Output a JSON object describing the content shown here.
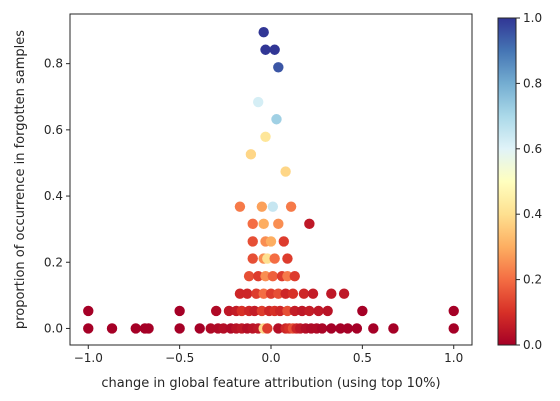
{
  "chart_data": {
    "type": "scatter",
    "title": "",
    "xlabel": "change in global feature attribution (using top 10%)",
    "ylabel": "proportion of occurrence in forgotten samples",
    "xlim": [
      -1.1,
      1.1
    ],
    "ylim": [
      -0.05,
      0.95
    ],
    "xticks": [
      -1.0,
      -0.5,
      0.0,
      0.5,
      1.0
    ],
    "xtick_labels": [
      "−1.0",
      "−0.5",
      "0.0",
      "0.5",
      "1.0"
    ],
    "yticks": [
      0.0,
      0.2,
      0.4,
      0.6,
      0.8
    ],
    "ytick_labels": [
      "0.0",
      "0.2",
      "0.4",
      "0.6",
      "0.8"
    ],
    "grid": false,
    "colorbar": {
      "colormap": "RdYlBu",
      "range": [
        0.0,
        1.0
      ],
      "ticks": [
        0.0,
        0.2,
        0.4,
        0.6,
        0.8,
        1.0
      ],
      "tick_labels": [
        "0.0",
        "0.2",
        "0.4",
        "0.6",
        "0.8",
        "1.0"
      ],
      "colors": [
        "#a50026",
        "#d73027",
        "#f46d43",
        "#fdae61",
        "#fee090",
        "#ffffbf",
        "#e0f3f8",
        "#abd9e9",
        "#74add1",
        "#4575b4",
        "#313695"
      ]
    },
    "points": [
      {
        "x": -0.04,
        "y": 0.895,
        "c": 1.0
      },
      {
        "x": -0.03,
        "y": 0.842,
        "c": 1.0
      },
      {
        "x": 0.02,
        "y": 0.842,
        "c": 1.0
      },
      {
        "x": 0.04,
        "y": 0.789,
        "c": 0.95
      },
      {
        "x": -0.07,
        "y": 0.684,
        "c": 0.62
      },
      {
        "x": 0.03,
        "y": 0.632,
        "c": 0.72
      },
      {
        "x": -0.03,
        "y": 0.579,
        "c": 0.42
      },
      {
        "x": -0.11,
        "y": 0.526,
        "c": 0.38
      },
      {
        "x": 0.08,
        "y": 0.474,
        "c": 0.38
      },
      {
        "x": -0.17,
        "y": 0.368,
        "c": 0.22
      },
      {
        "x": -0.05,
        "y": 0.368,
        "c": 0.28
      },
      {
        "x": 0.01,
        "y": 0.368,
        "c": 0.65
      },
      {
        "x": 0.11,
        "y": 0.368,
        "c": 0.22
      },
      {
        "x": 0.21,
        "y": 0.316,
        "c": 0.05
      },
      {
        "x": -0.1,
        "y": 0.316,
        "c": 0.2
      },
      {
        "x": -0.04,
        "y": 0.316,
        "c": 0.3
      },
      {
        "x": 0.04,
        "y": 0.316,
        "c": 0.25
      },
      {
        "x": -0.1,
        "y": 0.263,
        "c": 0.15
      },
      {
        "x": -0.03,
        "y": 0.263,
        "c": 0.25
      },
      {
        "x": 0.0,
        "y": 0.263,
        "c": 0.3
      },
      {
        "x": 0.07,
        "y": 0.263,
        "c": 0.12
      },
      {
        "x": -0.1,
        "y": 0.211,
        "c": 0.15
      },
      {
        "x": -0.04,
        "y": 0.211,
        "c": 0.25
      },
      {
        "x": -0.02,
        "y": 0.211,
        "c": 0.4
      },
      {
        "x": 0.02,
        "y": 0.211,
        "c": 0.2
      },
      {
        "x": 0.09,
        "y": 0.211,
        "c": 0.12
      },
      {
        "x": -0.12,
        "y": 0.158,
        "c": 0.15
      },
      {
        "x": -0.07,
        "y": 0.158,
        "c": 0.12
      },
      {
        "x": -0.03,
        "y": 0.158,
        "c": 0.25
      },
      {
        "x": 0.01,
        "y": 0.158,
        "c": 0.18
      },
      {
        "x": 0.06,
        "y": 0.158,
        "c": 0.12
      },
      {
        "x": 0.09,
        "y": 0.158,
        "c": 0.22
      },
      {
        "x": 0.13,
        "y": 0.158,
        "c": 0.12
      },
      {
        "x": -0.17,
        "y": 0.105,
        "c": 0.08
      },
      {
        "x": -0.13,
        "y": 0.105,
        "c": 0.08
      },
      {
        "x": -0.08,
        "y": 0.105,
        "c": 0.12
      },
      {
        "x": -0.04,
        "y": 0.105,
        "c": 0.2
      },
      {
        "x": 0.0,
        "y": 0.105,
        "c": 0.12
      },
      {
        "x": 0.04,
        "y": 0.105,
        "c": 0.15
      },
      {
        "x": 0.08,
        "y": 0.105,
        "c": 0.08
      },
      {
        "x": 0.12,
        "y": 0.105,
        "c": 0.1
      },
      {
        "x": 0.18,
        "y": 0.105,
        "c": 0.08
      },
      {
        "x": 0.23,
        "y": 0.105,
        "c": 0.06
      },
      {
        "x": 0.33,
        "y": 0.105,
        "c": 0.05
      },
      {
        "x": 0.4,
        "y": 0.105,
        "c": 0.05
      },
      {
        "x": -0.23,
        "y": 0.053,
        "c": 0.05
      },
      {
        "x": -0.19,
        "y": 0.053,
        "c": 0.06
      },
      {
        "x": -0.16,
        "y": 0.053,
        "c": 0.1
      },
      {
        "x": -0.12,
        "y": 0.053,
        "c": 0.08
      },
      {
        "x": -0.09,
        "y": 0.053,
        "c": 0.06
      },
      {
        "x": -0.05,
        "y": 0.053,
        "c": 0.12
      },
      {
        "x": -0.01,
        "y": 0.053,
        "c": 0.08
      },
      {
        "x": 0.02,
        "y": 0.053,
        "c": 0.1
      },
      {
        "x": 0.05,
        "y": 0.053,
        "c": 0.08
      },
      {
        "x": 0.09,
        "y": 0.053,
        "c": 0.15
      },
      {
        "x": 0.13,
        "y": 0.053,
        "c": 0.06
      },
      {
        "x": 0.17,
        "y": 0.053,
        "c": 0.05
      },
      {
        "x": 0.21,
        "y": 0.053,
        "c": 0.06
      },
      {
        "x": 0.26,
        "y": 0.053,
        "c": 0.05
      },
      {
        "x": 0.31,
        "y": 0.053,
        "c": 0.04
      },
      {
        "x": -1.0,
        "y": 0.053,
        "c": 0.0
      },
      {
        "x": -0.5,
        "y": 0.053,
        "c": 0.0
      },
      {
        "x": -0.3,
        "y": 0.053,
        "c": 0.02
      },
      {
        "x": 0.5,
        "y": 0.053,
        "c": 0.0
      },
      {
        "x": 1.0,
        "y": 0.053,
        "c": 0.0
      },
      {
        "x": -1.0,
        "y": 0.0,
        "c": 0.0
      },
      {
        "x": -0.87,
        "y": 0.0,
        "c": 0.0
      },
      {
        "x": -0.74,
        "y": 0.0,
        "c": 0.0
      },
      {
        "x": -0.69,
        "y": 0.0,
        "c": 0.0
      },
      {
        "x": -0.67,
        "y": 0.0,
        "c": 0.0
      },
      {
        "x": -0.5,
        "y": 0.0,
        "c": 0.0
      },
      {
        "x": -0.39,
        "y": 0.0,
        "c": 0.0
      },
      {
        "x": -0.33,
        "y": 0.0,
        "c": 0.02
      },
      {
        "x": -0.29,
        "y": 0.0,
        "c": 0.02
      },
      {
        "x": -0.26,
        "y": 0.0,
        "c": 0.03
      },
      {
        "x": -0.22,
        "y": 0.0,
        "c": 0.02
      },
      {
        "x": -0.19,
        "y": 0.0,
        "c": 0.04
      },
      {
        "x": -0.16,
        "y": 0.0,
        "c": 0.05
      },
      {
        "x": -0.13,
        "y": 0.0,
        "c": 0.03
      },
      {
        "x": -0.1,
        "y": 0.0,
        "c": 0.04
      },
      {
        "x": -0.07,
        "y": 0.0,
        "c": 0.05
      },
      {
        "x": -0.04,
        "y": 0.0,
        "c": 0.38
      },
      {
        "x": -0.02,
        "y": 0.0,
        "c": 0.12
      },
      {
        "x": 0.04,
        "y": 0.0,
        "c": 0.03
      },
      {
        "x": 0.08,
        "y": 0.0,
        "c": 0.08
      },
      {
        "x": 0.1,
        "y": 0.0,
        "c": 0.1
      },
      {
        "x": 0.12,
        "y": 0.0,
        "c": 0.15
      },
      {
        "x": 0.14,
        "y": 0.0,
        "c": 0.08
      },
      {
        "x": 0.16,
        "y": 0.0,
        "c": 0.05
      },
      {
        "x": 0.19,
        "y": 0.0,
        "c": 0.03
      },
      {
        "x": 0.22,
        "y": 0.0,
        "c": 0.02
      },
      {
        "x": 0.25,
        "y": 0.0,
        "c": 0.02
      },
      {
        "x": 0.28,
        "y": 0.0,
        "c": 0.01
      },
      {
        "x": 0.33,
        "y": 0.0,
        "c": 0.0
      },
      {
        "x": 0.38,
        "y": 0.0,
        "c": 0.0
      },
      {
        "x": 0.42,
        "y": 0.0,
        "c": 0.0
      },
      {
        "x": 0.47,
        "y": 0.0,
        "c": 0.0
      },
      {
        "x": 0.56,
        "y": 0.0,
        "c": 0.0
      },
      {
        "x": 0.67,
        "y": 0.0,
        "c": 0.0
      },
      {
        "x": 1.0,
        "y": 0.0,
        "c": 0.0
      }
    ]
  }
}
